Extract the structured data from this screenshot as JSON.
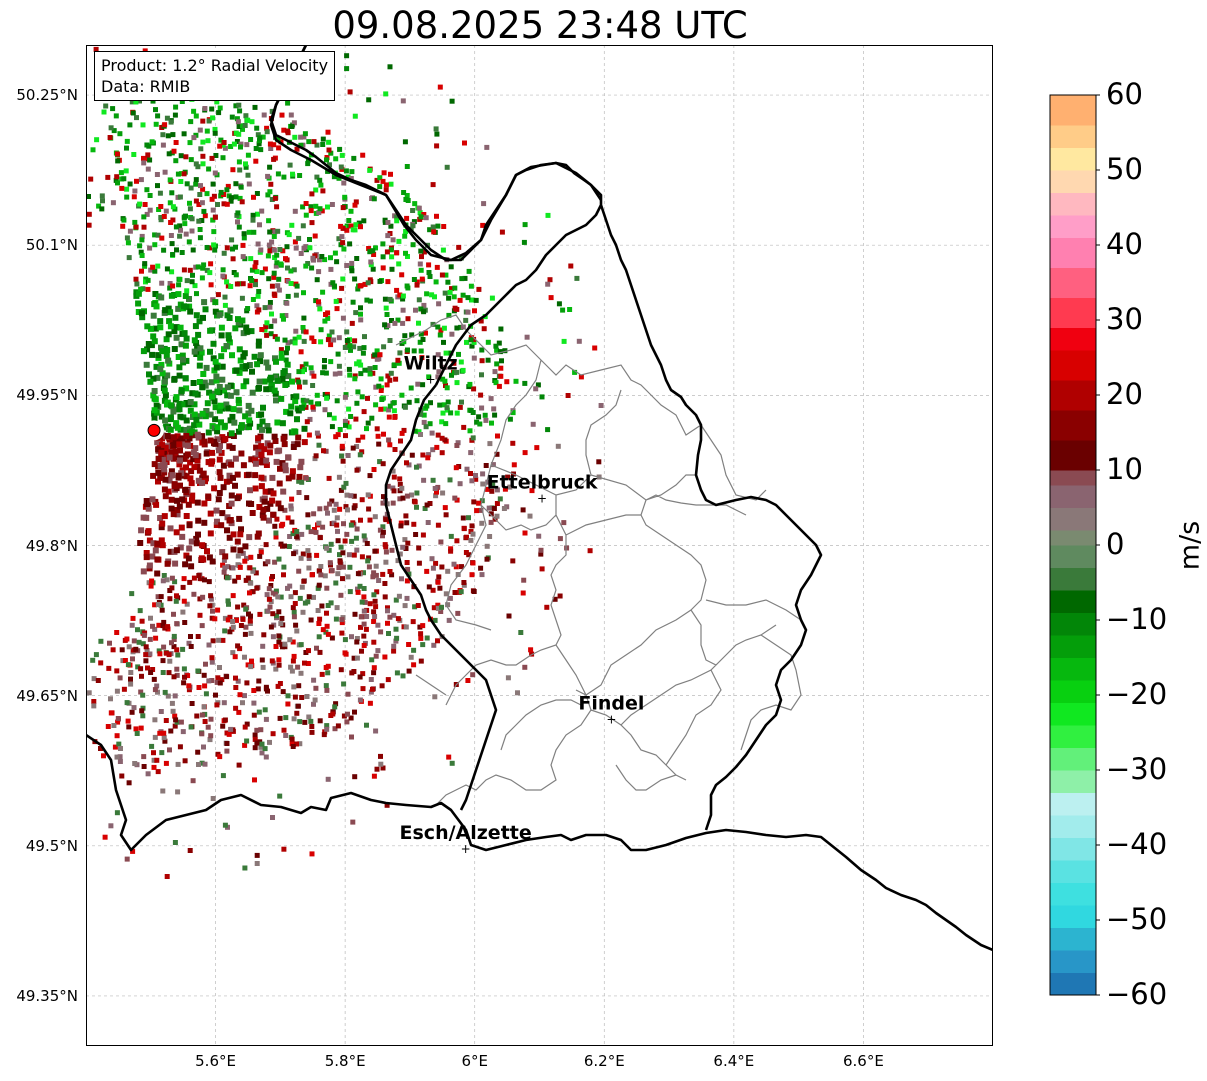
{
  "title": "09.08.2025 23:48 UTC",
  "info": {
    "product": "Product: 1.2° Radial Velocity",
    "data_source": "Data: RMIB"
  },
  "colors": {
    "border_country": "#000000",
    "border_canton": "#808080",
    "grid": "#bbbbbb",
    "radar_site": "#ff0000"
  },
  "map": {
    "lat_ticks": [
      "50.25°N",
      "50.1°N",
      "49.95°N",
      "49.8°N",
      "49.65°N",
      "49.5°N",
      "49.35°N"
    ],
    "lat_values": [
      50.25,
      50.1,
      49.95,
      49.8,
      49.65,
      49.5,
      49.35
    ],
    "lon_ticks": [
      "5.6°E",
      "5.8°E",
      "6°E",
      "6.2°E",
      "6.4°E",
      "6.6°E"
    ],
    "lon_values": [
      5.6,
      5.8,
      6.0,
      6.2,
      6.4,
      6.6
    ],
    "extent": {
      "lon_min": 5.4,
      "lon_max": 6.8,
      "lat_min": 49.3,
      "lat_max": 50.3
    },
    "radar_site": {
      "lat": 49.915,
      "lon": 5.505
    },
    "cities": [
      {
        "name": "Wiltz",
        "lat": 49.966,
        "lon": 5.932
      },
      {
        "name": "Ettelbruck",
        "lat": 49.847,
        "lon": 6.104
      },
      {
        "name": "Findel",
        "lat": 49.626,
        "lon": 6.211
      },
      {
        "name": "Esch/Alzette",
        "lat": 49.497,
        "lon": 5.986
      }
    ]
  },
  "colorbar": {
    "unit": "m/s",
    "min": -60,
    "max": 60,
    "tick_labels": [
      "60",
      "50",
      "40",
      "30",
      "20",
      "10",
      "0",
      "−10",
      "−20",
      "−30",
      "−40",
      "−50",
      "−60"
    ],
    "tick_values": [
      60,
      50,
      40,
      30,
      20,
      10,
      0,
      -10,
      -20,
      -30,
      -40,
      -50,
      -60
    ],
    "stops": [
      {
        "v": -60,
        "c": "#1f77b4"
      },
      {
        "v": -57,
        "c": "#2896c8"
      },
      {
        "v": -54,
        "c": "#2cb4d0"
      },
      {
        "v": -51,
        "c": "#30d8e0"
      },
      {
        "v": -48,
        "c": "#3ee0e0"
      },
      {
        "v": -45,
        "c": "#5ae2e2"
      },
      {
        "v": -42,
        "c": "#80e6e6"
      },
      {
        "v": -39,
        "c": "#a2ecec"
      },
      {
        "v": -36,
        "c": "#bcf0f0"
      },
      {
        "v": -33,
        "c": "#8ef0a8"
      },
      {
        "v": -30,
        "c": "#62f07a"
      },
      {
        "v": -27,
        "c": "#30f040"
      },
      {
        "v": -24,
        "c": "#10e820"
      },
      {
        "v": -21,
        "c": "#08d010"
      },
      {
        "v": -18,
        "c": "#06b80e"
      },
      {
        "v": -15,
        "c": "#049e0a"
      },
      {
        "v": -12,
        "c": "#028608"
      },
      {
        "v": -9,
        "c": "#006800"
      },
      {
        "v": -6,
        "c": "#3a7a3a"
      },
      {
        "v": -3,
        "c": "#5f8a5f"
      },
      {
        "v": 0,
        "c": "#7a8a70"
      },
      {
        "v": 2,
        "c": "#8a7878"
      },
      {
        "v": 5,
        "c": "#8a6470"
      },
      {
        "v": 8,
        "c": "#8a4a52"
      },
      {
        "v": 10,
        "c": "#6a0000"
      },
      {
        "v": 14,
        "c": "#8a0000"
      },
      {
        "v": 18,
        "c": "#b00000"
      },
      {
        "v": 22,
        "c": "#d80000"
      },
      {
        "v": 26,
        "c": "#f00010"
      },
      {
        "v": 29,
        "c": "#ff3a50"
      },
      {
        "v": 33,
        "c": "#ff6080"
      },
      {
        "v": 37,
        "c": "#ff80b0"
      },
      {
        "v": 41,
        "c": "#ff9ec8"
      },
      {
        "v": 44,
        "c": "#ffb8c0"
      },
      {
        "v": 47,
        "c": "#ffd8b0"
      },
      {
        "v": 50,
        "c": "#ffe8a0"
      },
      {
        "v": 53,
        "c": "#ffcc88"
      },
      {
        "v": 56,
        "c": "#ffb070"
      },
      {
        "v": 60,
        "c": "#ff9c55"
      }
    ]
  },
  "radar_echoes": {
    "north_sector_colors": [
      "#006800",
      "#028608",
      "#049e0a",
      "#06b80e",
      "#3a7a3a",
      "#10e820",
      "#b00000",
      "#d80000",
      "#8a6470"
    ],
    "south_sector_colors": [
      "#6a0000",
      "#8a0000",
      "#b00000",
      "#8a4a52",
      "#8a6470",
      "#8a7878",
      "#d80000",
      "#3a7a3a"
    ]
  }
}
